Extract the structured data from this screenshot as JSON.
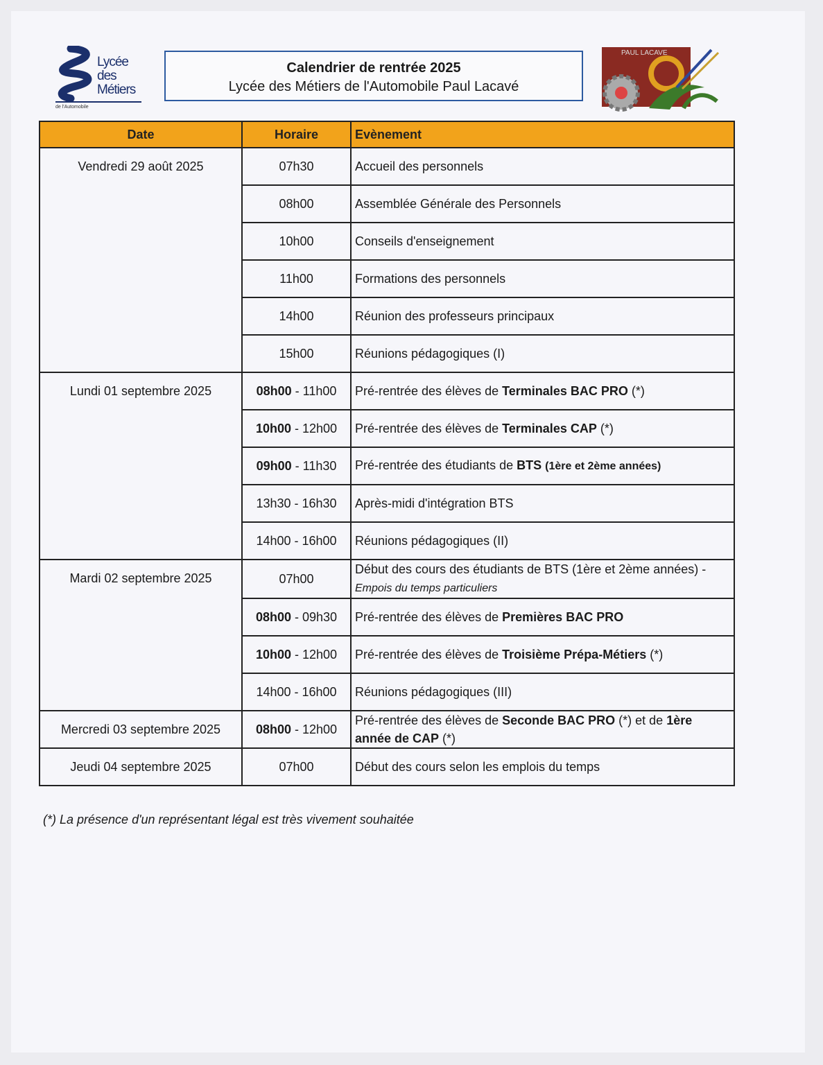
{
  "header": {
    "logo_left": {
      "lines": [
        "Lycée",
        "des",
        "Métiers"
      ],
      "sub": "de l'Automobile"
    },
    "logo_right": {
      "text": "PAUL LACAVE"
    },
    "title": "Calendrier de rentrée 2025",
    "subtitle": "Lycée des Métiers de l'Automobile Paul Lacavé",
    "accent_color": "#f2a31b",
    "border_color": "#2c5aa0"
  },
  "table": {
    "columns": [
      "Date",
      "Horaire",
      "Evènement"
    ],
    "groups": [
      {
        "date": "Vendredi 29 août 2025",
        "rows": [
          {
            "time": [
              {
                "t": "07h30"
              }
            ],
            "event": [
              {
                "t": "Accueil des personnels"
              }
            ]
          },
          {
            "time": [
              {
                "t": "08h00"
              }
            ],
            "event": [
              {
                "t": "Assemblée Générale des Personnels"
              }
            ]
          },
          {
            "time": [
              {
                "t": "10h00"
              }
            ],
            "event": [
              {
                "t": "Conseils d'enseignement"
              }
            ]
          },
          {
            "time": [
              {
                "t": "11h00"
              }
            ],
            "event": [
              {
                "t": "Formations des personnels"
              }
            ]
          },
          {
            "time": [
              {
                "t": "14h00"
              }
            ],
            "event": [
              {
                "t": "Réunion des professeurs principaux"
              }
            ]
          },
          {
            "time": [
              {
                "t": "15h00"
              }
            ],
            "event": [
              {
                "t": "Réunions pédagogiques (I)"
              }
            ]
          }
        ]
      },
      {
        "date": "Lundi 01 septembre 2025",
        "rows": [
          {
            "time": [
              {
                "t": "08h00",
                "b": true
              },
              {
                "t": " - 11h00"
              }
            ],
            "event": [
              {
                "t": "Pré-rentrée des  élèves de "
              },
              {
                "t": "Terminales BAC PRO",
                "b": true
              },
              {
                "t": " (*)"
              }
            ]
          },
          {
            "time": [
              {
                "t": "10h00",
                "b": true
              },
              {
                "t": " - 12h00"
              }
            ],
            "event": [
              {
                "t": "Pré-rentrée des élèves de "
              },
              {
                "t": "Terminales CAP",
                "b": true
              },
              {
                "t": " (*)"
              }
            ]
          },
          {
            "time": [
              {
                "t": "09h00",
                "b": true
              },
              {
                "t": " - 11h30"
              }
            ],
            "event": [
              {
                "t": "Pré-rentrée des étudiants de "
              },
              {
                "t": "BTS",
                "b": true
              },
              {
                "t": " "
              },
              {
                "t": "(1ère et 2ème années)",
                "b": true,
                "s": true
              }
            ]
          },
          {
            "time": [
              {
                "t": "13h30 - 16h30"
              }
            ],
            "event": [
              {
                "t": "Après-midi d'intégration BTS"
              }
            ]
          },
          {
            "time": [
              {
                "t": "14h00 - 16h00"
              }
            ],
            "event": [
              {
                "t": "Réunions pédagogiques (II)"
              }
            ]
          }
        ]
      },
      {
        "date": "Mardi 02 septembre 2025",
        "rows": [
          {
            "time": [
              {
                "t": "07h00"
              }
            ],
            "event": [
              {
                "t": "Début des cours des étudiants de BTS (1ère et 2ème années) -"
              },
              {
                "t": "Empois du temps particuliers",
                "i": true,
                "br": true
              }
            ]
          },
          {
            "time": [
              {
                "t": "08h00",
                "b": true
              },
              {
                "t": " - 09h30"
              }
            ],
            "event": [
              {
                "t": "Pré-rentrée des élèves de "
              },
              {
                "t": "Premières BAC PRO",
                "b": true
              }
            ]
          },
          {
            "time": [
              {
                "t": "10h00",
                "b": true
              },
              {
                "t": " - 12h00"
              }
            ],
            "event": [
              {
                "t": "Pré-rentrée des élèves de "
              },
              {
                "t": "Troisième Prépa-Métiers",
                "b": true
              },
              {
                "t": " (*)"
              }
            ]
          },
          {
            "time": [
              {
                "t": "14h00 - 16h00"
              }
            ],
            "event": [
              {
                "t": "Réunions pédagogiques (III)"
              }
            ]
          }
        ]
      },
      {
        "date": "Mercredi 03 septembre 2025",
        "rows": [
          {
            "time": [
              {
                "t": "08h00",
                "b": true
              },
              {
                "t": " - 12h00"
              }
            ],
            "event": [
              {
                "t": "Pré-rentrée des élèves de "
              },
              {
                "t": "Seconde BAC PRO",
                "b": true
              },
              {
                "t": " (*) et de "
              },
              {
                "t": "1ère année de CAP",
                "b": true
              },
              {
                "t": " (*)"
              }
            ]
          }
        ]
      },
      {
        "date": "Jeudi 04 septembre 2025",
        "rows": [
          {
            "time": [
              {
                "t": "07h00"
              }
            ],
            "event": [
              {
                "t": "Début des cours selon les emplois du temps"
              }
            ]
          }
        ]
      }
    ]
  },
  "footnote": "(*) La présence d'un représentant légal est très vivement souhaitée"
}
